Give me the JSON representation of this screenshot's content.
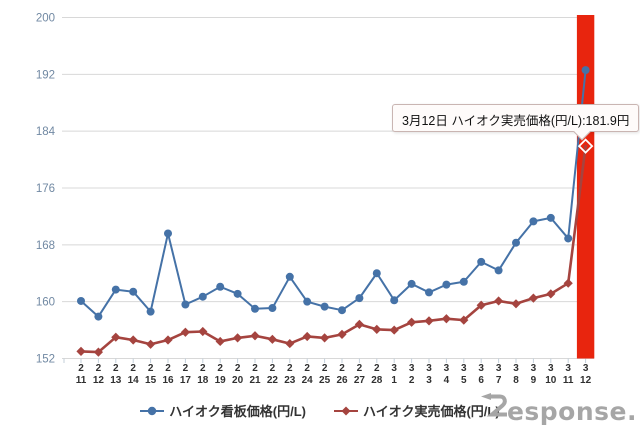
{
  "chart_data": {
    "type": "line",
    "title": "",
    "xlabel": "",
    "ylabel": "",
    "ylim": [
      152,
      200
    ],
    "yticks": [
      152,
      160,
      168,
      176,
      184,
      192,
      200
    ],
    "grid": true,
    "legend_position": "bottom",
    "categories": [
      "2/11",
      "2/12",
      "2/13",
      "2/14",
      "2/15",
      "2/16",
      "2/17",
      "2/18",
      "2/19",
      "2/20",
      "2/21",
      "2/22",
      "2/23",
      "2/24",
      "2/25",
      "2/26",
      "2/27",
      "2/28",
      "3/1",
      "3/2",
      "3/3",
      "3/4",
      "3/5",
      "3/6",
      "3/7",
      "3/8",
      "3/9",
      "3/10",
      "3/11",
      "3/12"
    ],
    "series": [
      {
        "name": "ハイオク看板価格(円/L)",
        "color": "#4572a7",
        "marker": "circle",
        "values": [
          160.1,
          157.9,
          161.7,
          161.4,
          158.6,
          169.6,
          159.6,
          160.7,
          162.1,
          161.1,
          159.0,
          159.1,
          163.5,
          160.0,
          159.3,
          158.8,
          160.5,
          164.0,
          160.2,
          162.5,
          161.3,
          162.4,
          162.8,
          165.6,
          164.4,
          168.3,
          171.3,
          171.8,
          168.9,
          192.6
        ]
      },
      {
        "name": "ハイオク実売価格(円/L)",
        "color": "#a5443f",
        "marker": "diamond",
        "values": [
          153.0,
          152.9,
          155.0,
          154.6,
          154.0,
          154.6,
          155.7,
          155.8,
          154.4,
          154.9,
          155.2,
          154.7,
          154.1,
          155.1,
          154.9,
          155.4,
          156.8,
          156.1,
          156.0,
          157.1,
          157.3,
          157.6,
          157.4,
          159.5,
          160.1,
          159.7,
          160.5,
          161.1,
          162.6,
          181.9
        ]
      }
    ],
    "highlight": {
      "category": "3/12",
      "bar_color": "#e8250e",
      "selected_series": "ハイオク実売価格(円/L)",
      "selected_value": 181.9,
      "selected_marker": "open-diamond-white"
    },
    "tooltip": {
      "text": "3月12日 ハイオク実売価格(円/L):181.9円",
      "date": "3月12日",
      "series": "ハイオク実売価格(円/L)",
      "value": "181.9円"
    },
    "axis_colors": {
      "y_label": "#7189a3",
      "x_label": "#303030",
      "gridline": "#d8d8d8",
      "tick": "#c3cfda"
    }
  },
  "watermark": "Response."
}
